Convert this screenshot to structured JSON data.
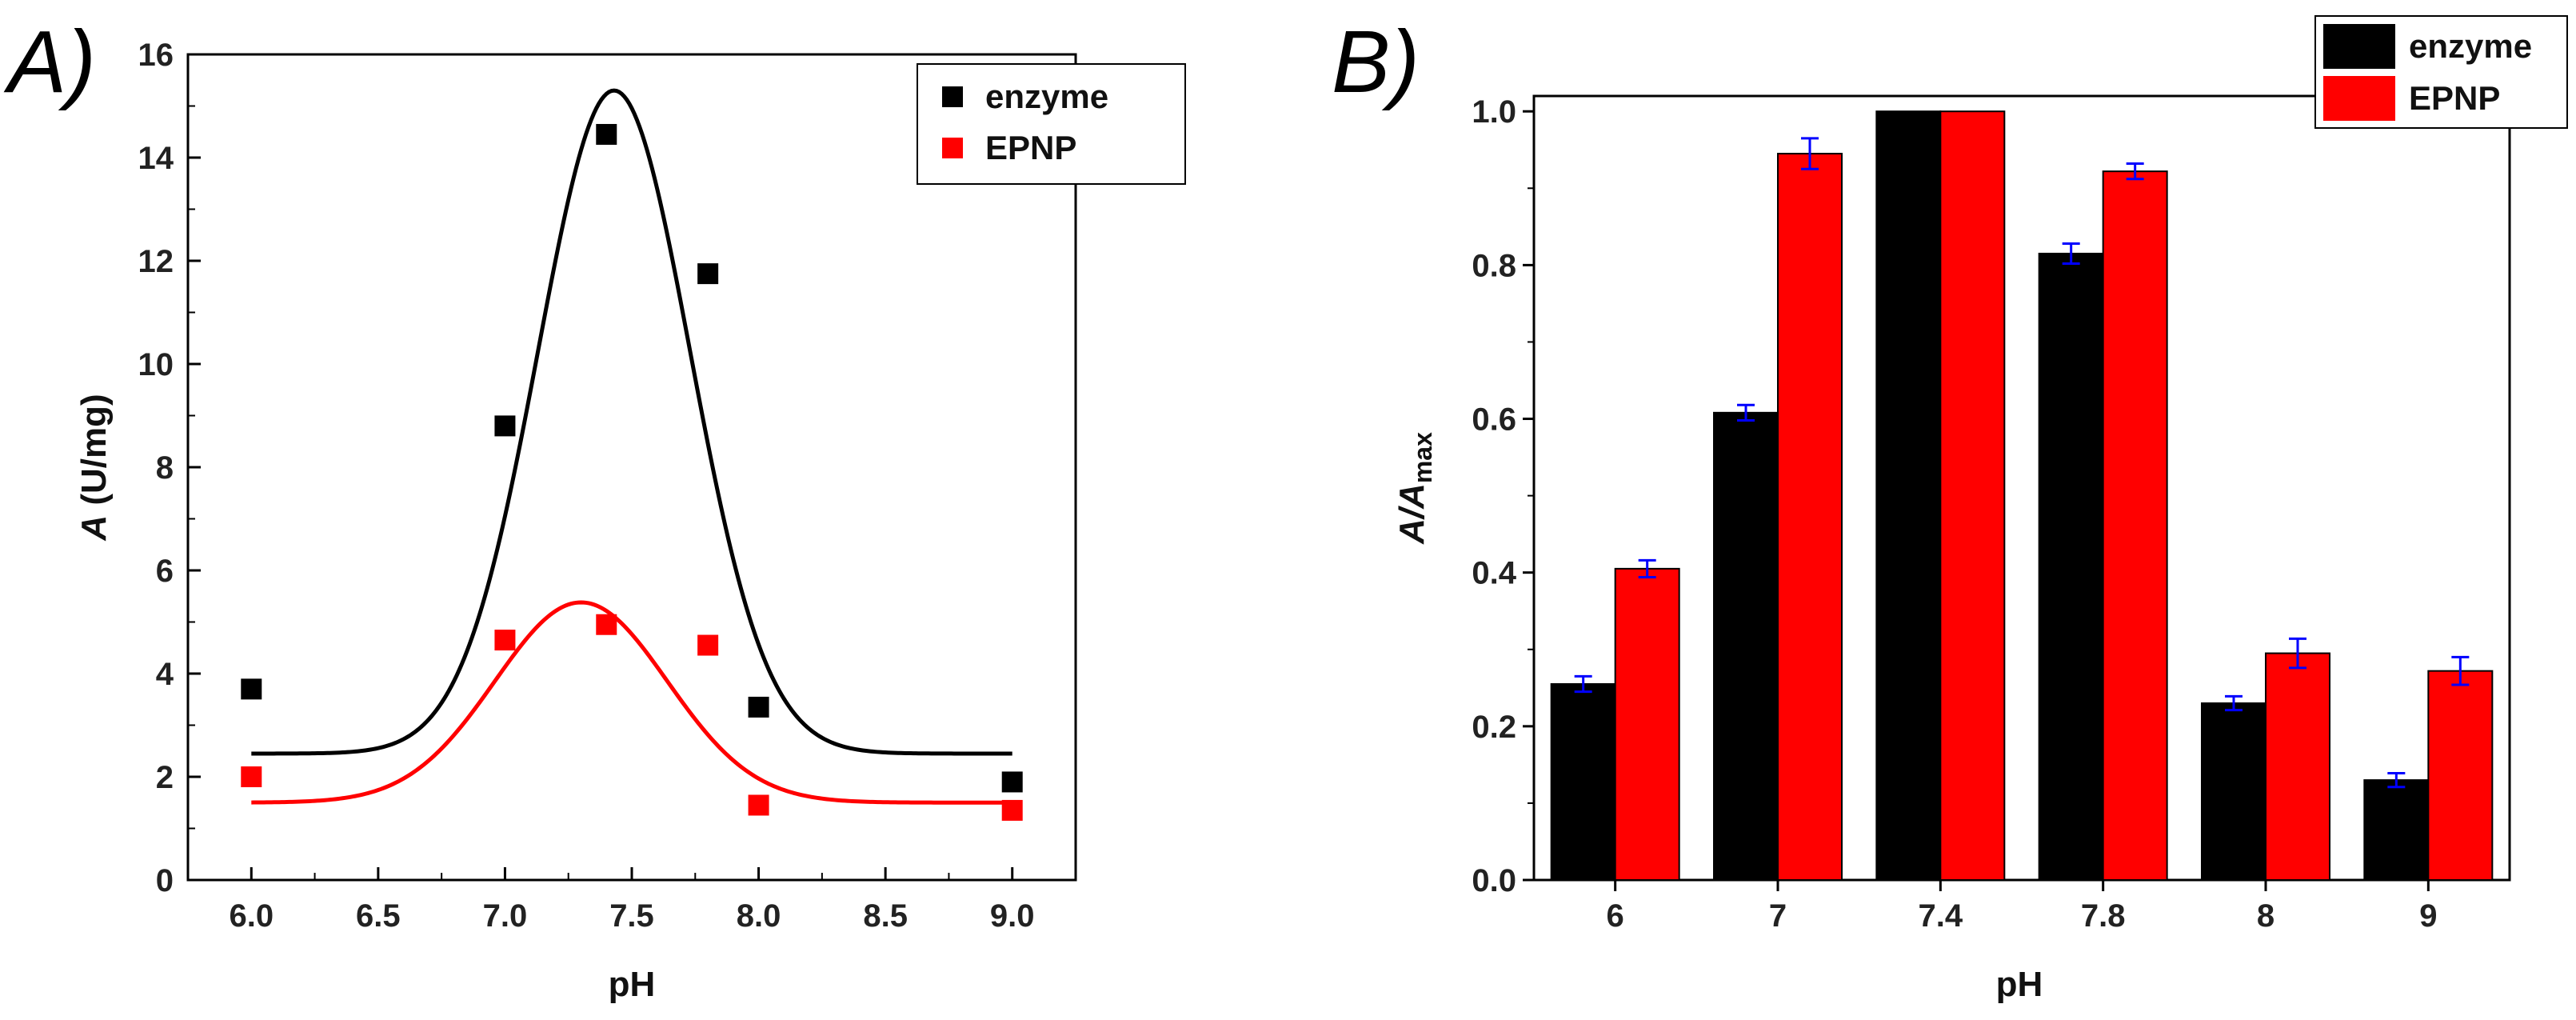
{
  "chart_data": [
    {
      "panel": "A)",
      "type": "scatter",
      "xlabel": "pH",
      "ylabel_italic": "A",
      "ylabel_rest": " (U/mg)",
      "xlim": [
        5.75,
        9.25
      ],
      "ylim": [
        0,
        16
      ],
      "xticks": [
        "6.0",
        "6.5",
        "7.0",
        "7.5",
        "8.0",
        "8.5",
        "9.0"
      ],
      "xtick_values": [
        6.0,
        6.5,
        7.0,
        7.5,
        8.0,
        8.5,
        9.0
      ],
      "yticks": [
        "0",
        "2",
        "4",
        "6",
        "8",
        "10",
        "12",
        "14",
        "16"
      ],
      "ytick_values": [
        0,
        2,
        4,
        6,
        8,
        10,
        12,
        14,
        16
      ],
      "legend_position": "top-right",
      "series": [
        {
          "name": "enzyme",
          "color": "#000000",
          "x": [
            6.0,
            7.0,
            7.4,
            7.8,
            8.0,
            9.0
          ],
          "y": [
            3.7,
            8.8,
            14.45,
            11.75,
            3.35,
            1.9
          ],
          "fit": {
            "type": "gaussian",
            "baseline": 2.45,
            "amplitude": 12.85,
            "center": 7.43,
            "sigma": 0.3
          }
        },
        {
          "name": "EPNP",
          "color": "#ff0000",
          "x": [
            6.0,
            7.0,
            7.4,
            7.8,
            8.0,
            9.0
          ],
          "y": [
            2.0,
            4.65,
            4.95,
            4.55,
            1.45,
            1.35
          ],
          "fit": {
            "type": "gaussian",
            "baseline": 1.5,
            "amplitude": 3.88,
            "center": 7.3,
            "sigma": 0.34
          }
        }
      ]
    },
    {
      "panel": "B)",
      "type": "bar",
      "xlabel": "pH",
      "ylabel_italic": "A/A",
      "ylabel_sub": "max",
      "categories": [
        "6",
        "7",
        "7.4",
        "7.8",
        "8",
        "9"
      ],
      "ylim": [
        0,
        1.02
      ],
      "yticks": [
        "0.0",
        "0.2",
        "0.4",
        "0.6",
        "0.8",
        "1.0"
      ],
      "ytick_values": [
        0,
        0.2,
        0.4,
        0.6,
        0.8,
        1.0
      ],
      "legend_position": "top-right",
      "error_bar_color": "#0000ff",
      "series": [
        {
          "name": "enzyme",
          "color": "#000000",
          "values": [
            0.255,
            0.608,
            1.0,
            0.815,
            0.23,
            0.13
          ],
          "errors": [
            0.01,
            0.01,
            0,
            0.013,
            0.009,
            0.009
          ]
        },
        {
          "name": "EPNP",
          "color": "#ff0000",
          "values": [
            0.405,
            0.945,
            1.0,
            0.922,
            0.295,
            0.272
          ],
          "errors": [
            0.011,
            0.02,
            0,
            0.01,
            0.019,
            0.018
          ]
        }
      ]
    }
  ]
}
